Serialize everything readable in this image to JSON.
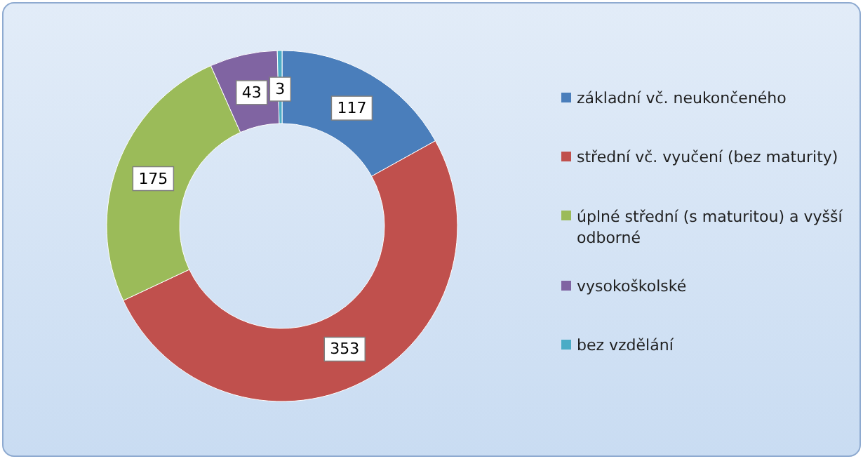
{
  "chart_data": {
    "type": "donut",
    "categories": [
      "základní vč. neukončeného",
      "střední vč. vyučení (bez maturity)",
      "úplné střední (s maturitou) a vyšší odborné",
      "vysokoškolské",
      "bez vzdělání"
    ],
    "values": [
      117,
      353,
      175,
      43,
      3
    ],
    "colors": [
      "#4a7ebb",
      "#c0504d",
      "#9bbb59",
      "#8064a2",
      "#4bacc6"
    ],
    "data_labels": true,
    "legend": "right"
  }
}
